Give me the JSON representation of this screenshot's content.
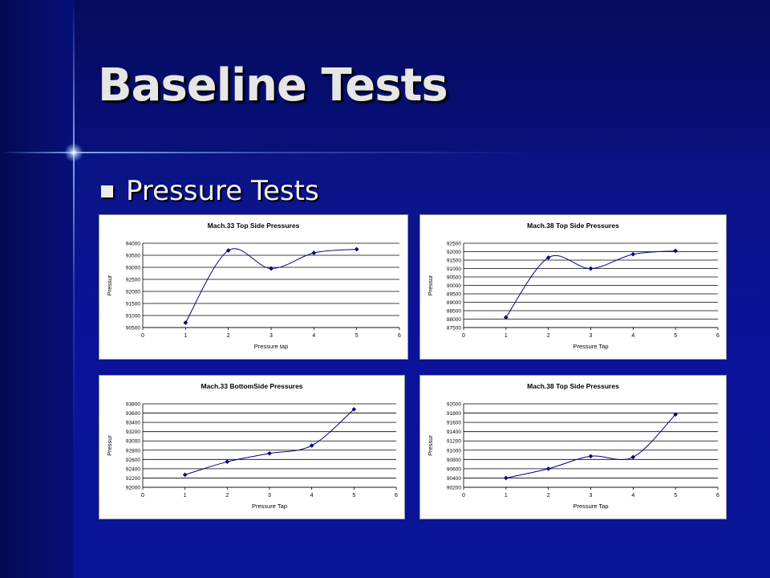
{
  "slide": {
    "title": "Baseline Tests",
    "bullet": "Pressure Tests"
  },
  "colors": {
    "series": "#000080",
    "grid": "#000000"
  },
  "chart_data": [
    {
      "type": "line",
      "title": "Mach.33 Top Side Pressures",
      "xlabel": "Pressure tap",
      "ylabel": "Pressur",
      "xlim": [
        0,
        6
      ],
      "xticks": [
        0,
        1,
        2,
        3,
        4,
        5,
        6
      ],
      "ylim": [
        90500,
        94000
      ],
      "yticks": [
        90500,
        91000,
        91500,
        92000,
        92500,
        93000,
        93500,
        94000
      ],
      "series": [
        {
          "x": [
            1,
            2,
            3,
            4,
            5
          ],
          "y": [
            90700,
            93700,
            92950,
            93600,
            93750
          ]
        }
      ]
    },
    {
      "type": "line",
      "title": "Mach.38 Top Side Pressures",
      "xlabel": "Pressure Tap",
      "ylabel": "Pressur",
      "xlim": [
        0,
        6
      ],
      "xticks": [
        0,
        1,
        2,
        3,
        4,
        5,
        6
      ],
      "ylim": [
        87500,
        92500
      ],
      "yticks": [
        87500,
        88000,
        88500,
        89000,
        89500,
        90000,
        90500,
        91000,
        91500,
        92000,
        92500
      ],
      "series": [
        {
          "x": [
            1,
            2,
            3,
            4,
            5
          ],
          "y": [
            88100,
            91650,
            91000,
            91850,
            92050
          ]
        }
      ]
    },
    {
      "type": "line",
      "title": "Mach.33 BottomSide Pressures",
      "xlabel": "Pressure Tap",
      "ylabel": "Pressur",
      "xlim": [
        0,
        6
      ],
      "xticks": [
        0,
        1,
        2,
        3,
        4,
        5,
        6
      ],
      "ylim": [
        92000,
        93800
      ],
      "yticks": [
        92000,
        92200,
        92400,
        92600,
        92800,
        93000,
        93200,
        93400,
        93600,
        93800
      ],
      "series": [
        {
          "x": [
            1,
            2,
            3,
            4,
            5
          ],
          "y": [
            92270,
            92550,
            92730,
            92900,
            93680
          ]
        }
      ]
    },
    {
      "type": "line",
      "title": "Mach.38 Top Side Pressures",
      "xlabel": "Pressure Tap",
      "ylabel": "Pressur",
      "xlim": [
        0,
        6
      ],
      "xticks": [
        0,
        1,
        2,
        3,
        4,
        5,
        6
      ],
      "ylim": [
        90200,
        92000
      ],
      "yticks": [
        90200,
        90400,
        90600,
        90800,
        91000,
        91200,
        91400,
        91600,
        91800,
        92000
      ],
      "series": [
        {
          "x": [
            1,
            2,
            3,
            4,
            5
          ],
          "y": [
            90400,
            90600,
            90870,
            90850,
            91770
          ]
        }
      ]
    }
  ]
}
